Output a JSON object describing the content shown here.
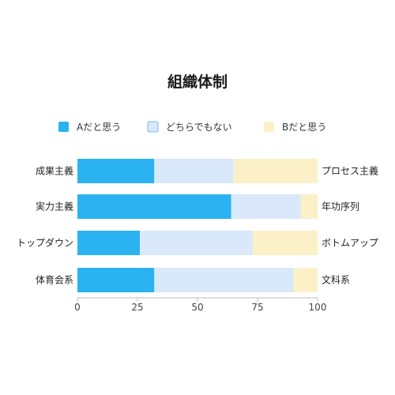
{
  "chart_data": {
    "type": "bar",
    "orientation": "horizontal",
    "stacked": true,
    "title": "組織体制",
    "categories_left": [
      "成果主義",
      "実力主義",
      "トップダウン",
      "体育会系"
    ],
    "categories_right": [
      "プロセス主義",
      "年功序列",
      "ボトムアップ",
      "文科系"
    ],
    "series": [
      {
        "name": "Aだと思う",
        "color": "#2ab3f0",
        "values": [
          32,
          64,
          26,
          32
        ]
      },
      {
        "name": "どちらでもない",
        "color": "#d9e9fb",
        "values": [
          33,
          29,
          47,
          58
        ]
      },
      {
        "name": "Bだと思う",
        "color": "#fbf0c8",
        "values": [
          35,
          7,
          27,
          10
        ]
      }
    ],
    "xlim": [
      0,
      100
    ],
    "xticks": [
      0,
      25,
      50,
      75,
      100
    ],
    "legend_position": "top",
    "grid": false
  }
}
